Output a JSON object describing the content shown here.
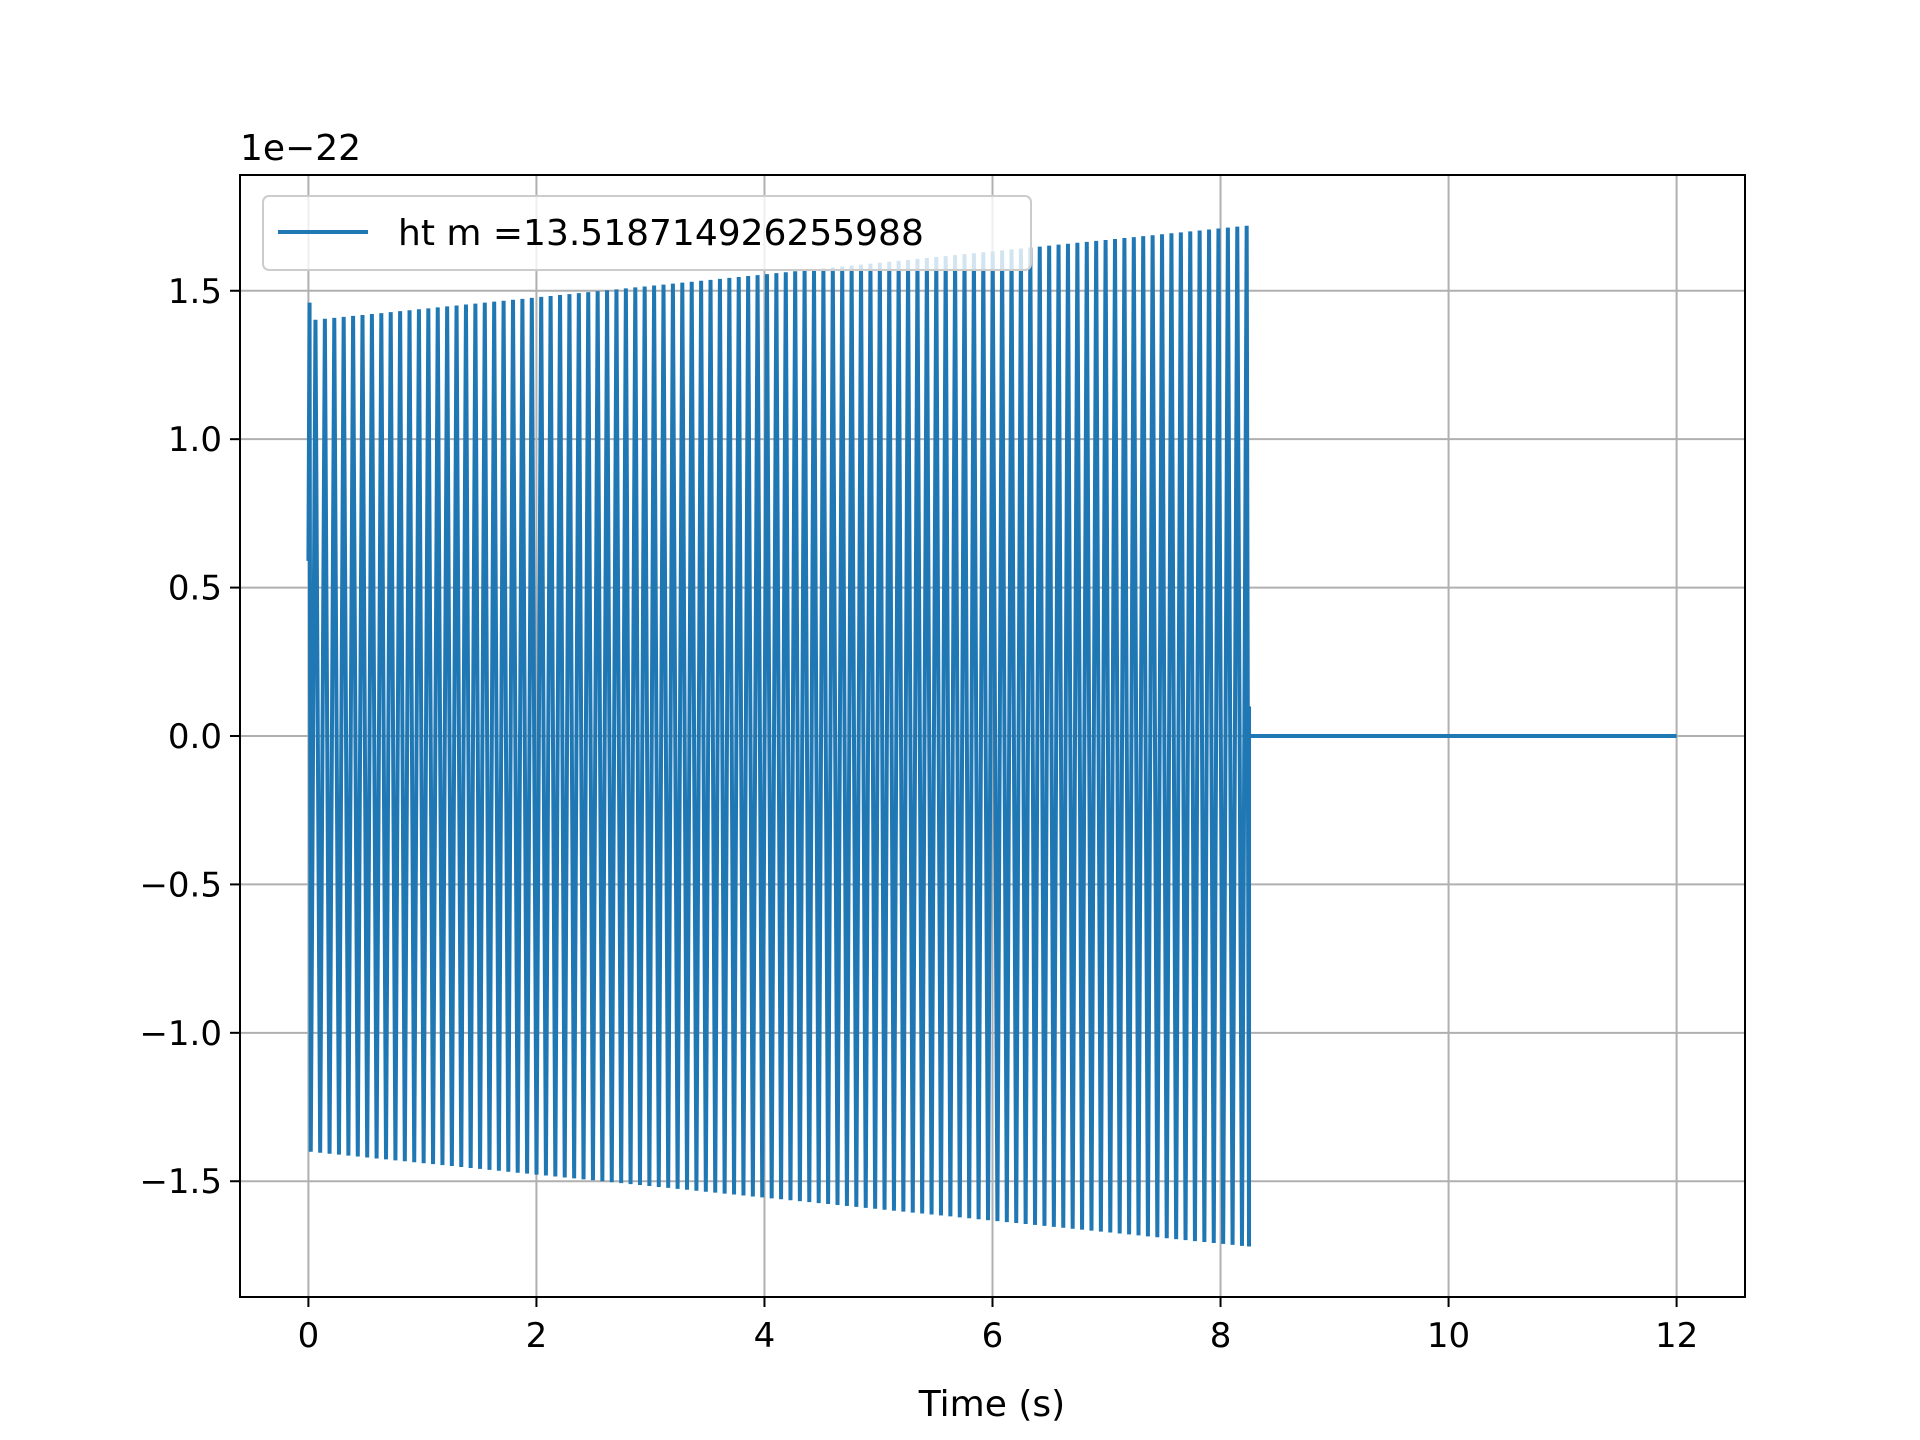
{
  "chart_data": {
    "type": "line",
    "title": "",
    "xlabel": "Time (s)",
    "ylabel": "",
    "y_offset_label": "1e−22",
    "xlim": [
      -0.6,
      12.6
    ],
    "ylim": [
      -1.89,
      1.89
    ],
    "x_ticks": [
      0,
      2,
      4,
      6,
      8,
      10,
      12
    ],
    "x_tick_labels": [
      "0",
      "2",
      "4",
      "6",
      "8",
      "10",
      "12"
    ],
    "y_ticks": [
      -1.5,
      -1.0,
      -0.5,
      0.0,
      0.5,
      1.0,
      1.5
    ],
    "y_tick_labels": [
      "−1.5",
      "−1.0",
      "−0.5",
      "0.0",
      "0.5",
      "1.0",
      "1.5"
    ],
    "grid": true,
    "legend_position": "upper-left",
    "series": [
      {
        "name": "ht m =13.518714926255988",
        "color": "#1f77b4",
        "signal": "oscillation",
        "x_start": 0.0,
        "x_end": 8.25,
        "amplitude_start": 1.4,
        "amplitude_end": 1.72,
        "initial_value": 0.59,
        "initial_peak": 1.46,
        "oscillation_cycles": 100,
        "final_value": 0.1,
        "flat_x_end": 12.0,
        "flat_value": 0.0
      }
    ]
  }
}
